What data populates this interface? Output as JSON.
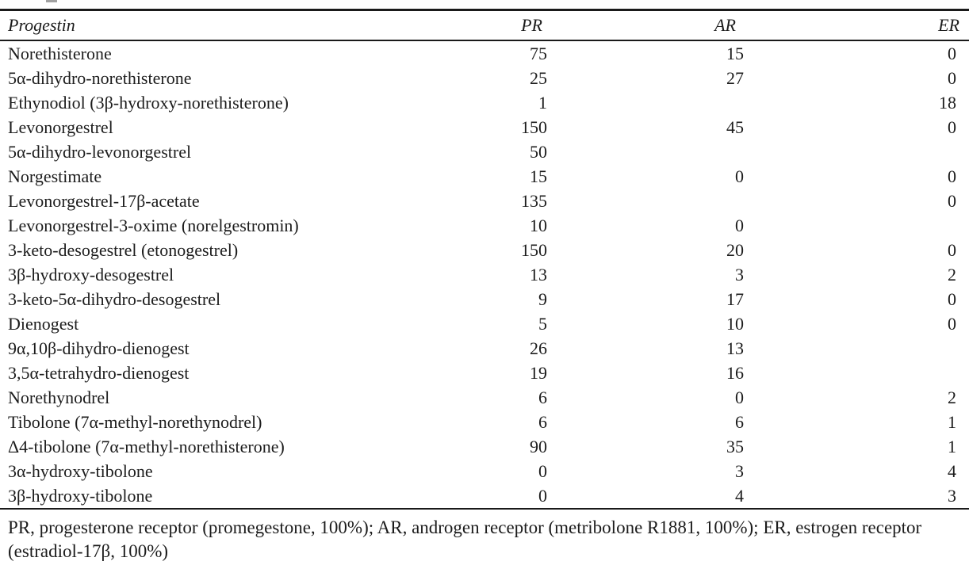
{
  "page": {
    "background_color": "#ffffff",
    "text_color": "#1c1c1c",
    "rule_color": "#1a1a1a"
  },
  "table": {
    "columns": [
      {
        "key": "name",
        "label": "Progestin"
      },
      {
        "key": "pr",
        "label": "PR"
      },
      {
        "key": "ar",
        "label": "AR"
      },
      {
        "key": "er",
        "label": "ER"
      }
    ],
    "rows": [
      {
        "name": "Norethisterone",
        "pr": "75",
        "ar": "15",
        "er": "0"
      },
      {
        "name": "5α-dihydro-norethisterone",
        "pr": "25",
        "ar": "27",
        "er": "0"
      },
      {
        "name": "Ethynodiol (3β-hydroxy-norethisterone)",
        "pr": "1",
        "ar": "",
        "er": "18"
      },
      {
        "name": "Levonorgestrel",
        "pr": "150",
        "ar": "45",
        "er": "0"
      },
      {
        "name": "5α-dihydro-levonorgestrel",
        "pr": "50",
        "ar": "",
        "er": ""
      },
      {
        "name": "Norgestimate",
        "pr": "15",
        "ar": "0",
        "er": "0"
      },
      {
        "name": "Levonorgestrel-17β-acetate",
        "pr": "135",
        "ar": "",
        "er": "0"
      },
      {
        "name": "Levonorgestrel-3-oxime (norelgestromin)",
        "pr": "10",
        "ar": "0",
        "er": ""
      },
      {
        "name": "3-keto-desogestrel (etonogestrel)",
        "pr": "150",
        "ar": "20",
        "er": "0"
      },
      {
        "name": "3β-hydroxy-desogestrel",
        "pr": "13",
        "ar": "3",
        "er": "2"
      },
      {
        "name": "3-keto-5α-dihydro-desogestrel",
        "pr": "9",
        "ar": "17",
        "er": "0"
      },
      {
        "name": "Dienogest",
        "pr": "5",
        "ar": "10",
        "er": "0"
      },
      {
        "name": "9α,10β-dihydro-dienogest",
        "pr": "26",
        "ar": "13",
        "er": ""
      },
      {
        "name": "3,5α-tetrahydro-dienogest",
        "pr": "19",
        "ar": "16",
        "er": ""
      },
      {
        "name": "Norethynodrel",
        "pr": "6",
        "ar": "0",
        "er": "2"
      },
      {
        "name": "Tibolone (7α-methyl-norethynodrel)",
        "pr": "6",
        "ar": "6",
        "er": "1"
      },
      {
        "name": "Δ4-tibolone (7α-methyl-norethisterone)",
        "pr": "90",
        "ar": "35",
        "er": "1"
      },
      {
        "name": "3α-hydroxy-tibolone",
        "pr": "0",
        "ar": "3",
        "er": "4"
      },
      {
        "name": "3β-hydroxy-tibolone",
        "pr": "0",
        "ar": "4",
        "er": "3"
      }
    ]
  },
  "footnote": {
    "text": "PR, progesterone receptor (promegestone, 100%); AR, androgen receptor (metribolone R1881, 100%); ER, estrogen receptor (estradiol-17β, 100%)"
  }
}
